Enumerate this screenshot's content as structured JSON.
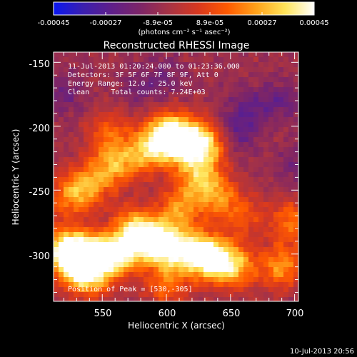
{
  "colorbar": {
    "ticks": [
      "-0.00045",
      "-0.00027",
      "-8.9e-05",
      "8.9e-05",
      "0.00027",
      "0.00045"
    ],
    "units": "(photons cm⁻² s⁻¹ asec⁻²)",
    "colors": [
      "#0a17f0",
      "#3a1fb0",
      "#5f1f8a",
      "#7d2567",
      "#a83344",
      "#d8381f",
      "#ff5a00",
      "#ffa21a",
      "#ffe45a",
      "#ffffff"
    ]
  },
  "title": "Reconstructed RHESSI Image",
  "annotation": {
    "time": "11-Jul-2013 01:20:24.000 to 01:23:36.000",
    "detectors": "Detectors: 3F 5F 6F 7F 8F 9F, Att 0",
    "energy": "Energy Range: 12.0 - 25.0 keV",
    "clean": "Clean     Total counts: 7.24E+03",
    "peak": "Position of Peak = [530,-305]"
  },
  "axes": {
    "xlabel": "Heliocentric X (arcsec)",
    "ylabel": "Heliocentric Y (arcsec)",
    "xticks": [
      "550",
      "600",
      "650",
      "700"
    ],
    "yticks": [
      "-150",
      "-200",
      "-250",
      "-300"
    ],
    "xrange": [
      512,
      703
    ],
    "yrange": [
      -337,
      -142
    ]
  },
  "footer": {
    "timestamp": "10-Jul-2013 20:56"
  },
  "blobs": [
    {
      "x": 530,
      "y": -305,
      "v": 1.0
    },
    {
      "x": 545,
      "y": -302,
      "v": 0.9
    },
    {
      "x": 565,
      "y": -300,
      "v": 0.75
    },
    {
      "x": 520,
      "y": -295,
      "v": 0.7
    },
    {
      "x": 575,
      "y": -280,
      "v": 0.7
    },
    {
      "x": 590,
      "y": -290,
      "v": 0.8
    },
    {
      "x": 605,
      "y": -296,
      "v": 0.7
    },
    {
      "x": 625,
      "y": -300,
      "v": 0.85
    },
    {
      "x": 640,
      "y": -305,
      "v": 0.7
    },
    {
      "x": 655,
      "y": -310,
      "v": 0.55
    },
    {
      "x": 612,
      "y": -212,
      "v": 0.95
    },
    {
      "x": 630,
      "y": -215,
      "v": 0.8
    },
    {
      "x": 600,
      "y": -205,
      "v": 0.7
    },
    {
      "x": 585,
      "y": -220,
      "v": 0.65
    },
    {
      "x": 560,
      "y": -230,
      "v": 0.6
    },
    {
      "x": 540,
      "y": -245,
      "v": 0.55
    },
    {
      "x": 525,
      "y": -255,
      "v": 0.5
    },
    {
      "x": 625,
      "y": -240,
      "v": 0.6
    },
    {
      "x": 610,
      "y": -265,
      "v": 0.55
    },
    {
      "x": 640,
      "y": -255,
      "v": 0.5
    },
    {
      "x": 690,
      "y": -310,
      "v": 0.6
    },
    {
      "x": 698,
      "y": -275,
      "v": 0.5
    },
    {
      "x": 540,
      "y": -320,
      "v": 0.5
    },
    {
      "x": 600,
      "y": -325,
      "v": 0.45
    },
    {
      "x": 660,
      "y": -270,
      "v": 0.35
    },
    {
      "x": 555,
      "y": -205,
      "v": 0.4
    }
  ],
  "holes": [
    {
      "x": 655,
      "y": -205,
      "v": 0.7
    },
    {
      "x": 665,
      "y": -185,
      "v": 0.6
    },
    {
      "x": 690,
      "y": -180,
      "v": 0.55
    },
    {
      "x": 600,
      "y": -160,
      "v": 0.4
    },
    {
      "x": 520,
      "y": -175,
      "v": 0.5
    },
    {
      "x": 580,
      "y": -170,
      "v": 0.4
    },
    {
      "x": 700,
      "y": -230,
      "v": 0.4
    }
  ]
}
